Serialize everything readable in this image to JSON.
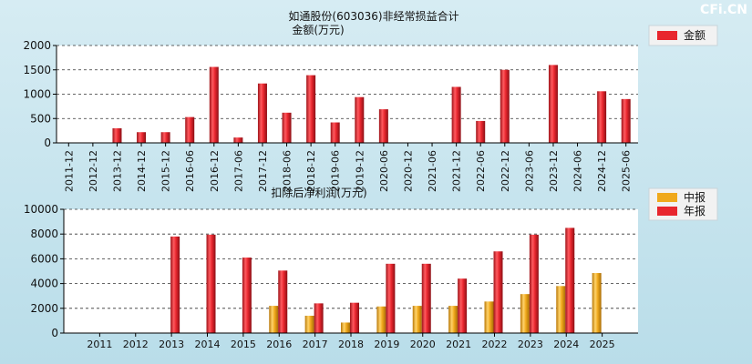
{
  "watermark": "CFi.CN",
  "colors": {
    "report_annual": "#e8262e",
    "report_interim": "#f0a91c",
    "legend_box": "#f2f2f2"
  },
  "chart_data": [
    {
      "type": "bar",
      "title": "如通股份(603036)非经常损益合计",
      "subtitle": "金额(万元)",
      "legend": [
        {
          "name": "金额",
          "color": "#e8262e"
        }
      ],
      "legend_position": "top-right",
      "grid": true,
      "ylim": [
        0,
        2000
      ],
      "yticks": [
        "0",
        "500",
        "1000",
        "1500",
        "2000"
      ],
      "categories": [
        "2011-12",
        "2012-12",
        "2013-12",
        "2014-12",
        "2015-12",
        "2016-06",
        "2016-12",
        "2017-06",
        "2017-12",
        "2018-06",
        "2018-12",
        "2019-06",
        "2019-12",
        "2020-06",
        "2020-12",
        "2021-06",
        "2021-12",
        "2022-06",
        "2022-12",
        "2023-06",
        "2023-12",
        "2024-06",
        "2024-12",
        "2025-06"
      ],
      "series": [
        {
          "name": "金额",
          "values": [
            0,
            0,
            300,
            220,
            220,
            530,
            1560,
            110,
            1220,
            620,
            1390,
            420,
            940,
            690,
            0,
            0,
            1150,
            450,
            1500,
            0,
            1600,
            0,
            1060,
            900
          ]
        }
      ]
    },
    {
      "type": "bar",
      "title": "扣除后净利润(万元)",
      "legend": [
        {
          "name": "中报",
          "color": "#f0a91c"
        },
        {
          "name": "年报",
          "color": "#e8262e"
        }
      ],
      "legend_position": "top-right",
      "grid": true,
      "ylim": [
        0,
        10000
      ],
      "yticks": [
        "0",
        "2000",
        "4000",
        "6000",
        "8000",
        "10000"
      ],
      "categories": [
        "2011",
        "2012",
        "2013",
        "2014",
        "2015",
        "2016",
        "2017",
        "2018",
        "2019",
        "2020",
        "2021",
        "2022",
        "2023",
        "2024",
        "2025"
      ],
      "series": [
        {
          "name": "中报",
          "values": [
            null,
            null,
            null,
            null,
            null,
            2200,
            1400,
            850,
            2150,
            2200,
            2200,
            2550,
            3150,
            3800,
            4850
          ]
        },
        {
          "name": "年报",
          "values": [
            null,
            null,
            7800,
            7950,
            6100,
            5050,
            2400,
            2450,
            5600,
            5600,
            4400,
            6600,
            7950,
            8500,
            null
          ]
        }
      ]
    }
  ]
}
